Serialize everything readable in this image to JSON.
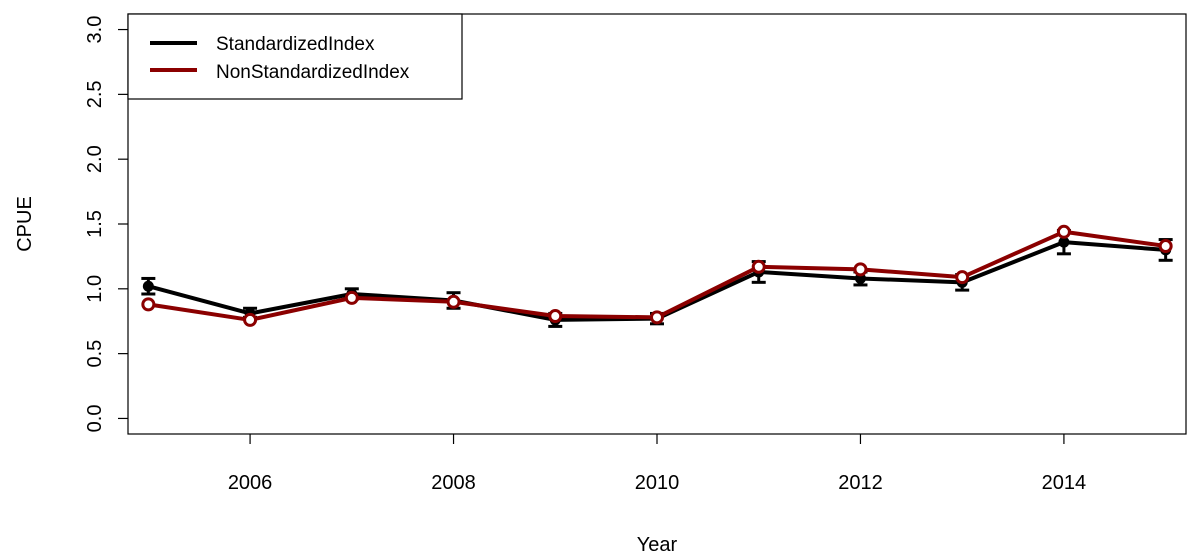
{
  "chart_data": {
    "type": "line",
    "xlabel": "Year",
    "ylabel": "CPUE",
    "xlim": [
      2004.8,
      2015.2
    ],
    "ylim": [
      -0.12,
      3.12
    ],
    "x_ticks": [
      2006,
      2008,
      2010,
      2012,
      2014
    ],
    "y_ticks": [
      0.0,
      0.5,
      1.0,
      1.5,
      2.0,
      2.5,
      3.0
    ],
    "x_tick_labels": [
      "2006",
      "2008",
      "2010",
      "2012",
      "2014"
    ],
    "y_tick_labels": [
      "0.0",
      "0.5",
      "1.0",
      "1.5",
      "2.0",
      "2.5",
      "3.0"
    ],
    "grid": false,
    "legend_position": "top-left",
    "x": [
      2005,
      2006,
      2007,
      2008,
      2009,
      2010,
      2011,
      2012,
      2013,
      2014,
      2015
    ],
    "series": [
      {
        "name": "StandardizedIndex",
        "color": "#000000",
        "marker": "filled-circle",
        "values": [
          1.02,
          0.81,
          0.96,
          0.91,
          0.76,
          0.77,
          1.13,
          1.08,
          1.05,
          1.36,
          1.3
        ],
        "error_lower": [
          0.96,
          0.78,
          0.92,
          0.85,
          0.71,
          0.73,
          1.05,
          1.03,
          0.99,
          1.27,
          1.22
        ],
        "error_upper": [
          1.08,
          0.85,
          1.0,
          0.97,
          0.81,
          0.81,
          1.21,
          1.13,
          1.11,
          1.45,
          1.38
        ]
      },
      {
        "name": "NonStandardizedIndex",
        "color": "#8b0000",
        "marker": "open-circle",
        "values": [
          0.88,
          0.76,
          0.93,
          0.9,
          0.79,
          0.78,
          1.17,
          1.15,
          1.09,
          1.44,
          1.33
        ]
      }
    ]
  }
}
